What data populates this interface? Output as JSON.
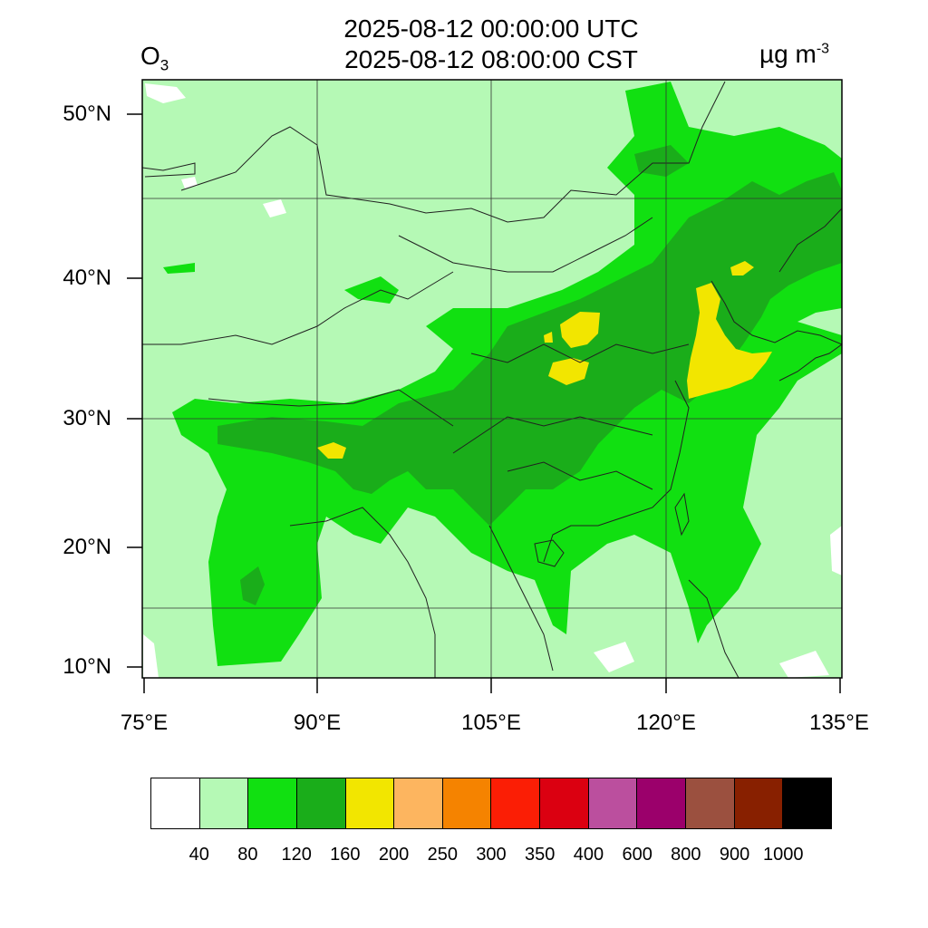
{
  "title": {
    "line1": "2025-08-12 00:00:00 UTC",
    "line2": "2025-08-12 08:00:00 CST"
  },
  "variable": {
    "name": "O",
    "subscript": "3"
  },
  "units": {
    "base": "µg m",
    "exponent": "-3"
  },
  "map": {
    "lon_range": [
      75,
      135
    ],
    "lat_range": [
      9,
      52
    ],
    "lat_ticks": [
      "50°N",
      "40°N",
      "30°N",
      "20°N",
      "10°N"
    ],
    "lon_ticks": [
      "75°E",
      "90°E",
      "105°E",
      "120°E",
      "135°E"
    ],
    "grid": true
  },
  "colorbar": {
    "colors": [
      "#ffffff",
      "#b5f9b5",
      "#11e011",
      "#1aad1a",
      "#f2e600",
      "#fdb55f",
      "#f58300",
      "#fb1e05",
      "#db0011",
      "#bb4f9e",
      "#9b006b",
      "#9b503f",
      "#882000",
      "#000000"
    ],
    "labels": [
      "40",
      "80",
      "120",
      "160",
      "200",
      "250",
      "300",
      "350",
      "400",
      "600",
      "800",
      "900",
      "1000"
    ]
  }
}
